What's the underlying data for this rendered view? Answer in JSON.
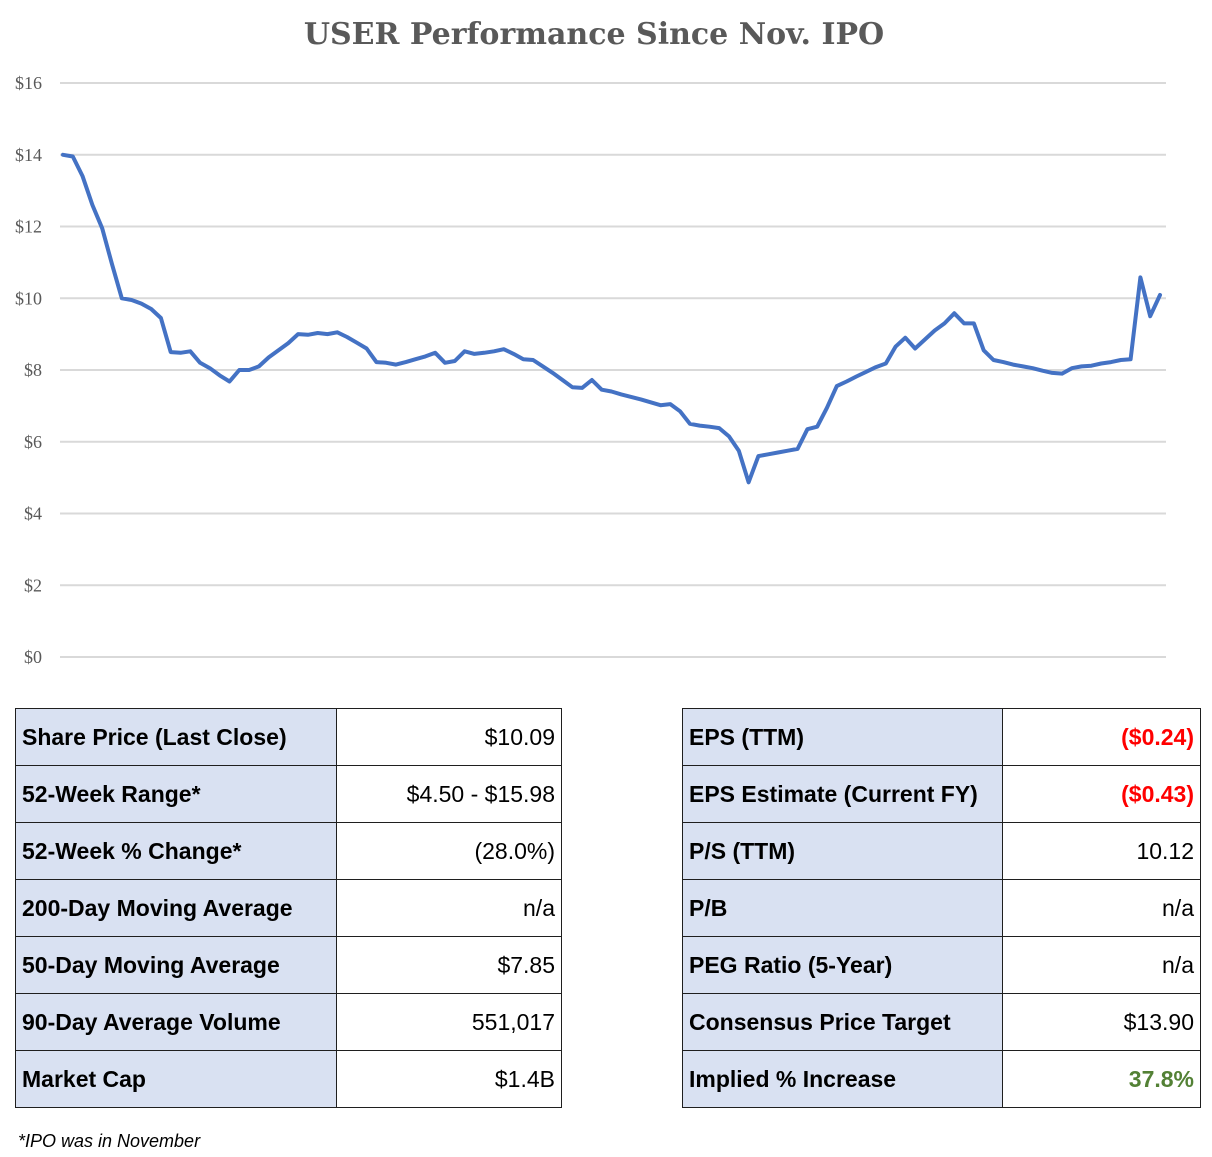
{
  "chart_data": {
    "type": "line",
    "title": "USER Performance Since Nov. IPO",
    "ylim": [
      0,
      16
    ],
    "yticks": [
      "$0",
      "$2",
      "$4",
      "$6",
      "$8",
      "$10",
      "$12",
      "$14",
      "$16"
    ],
    "grid": true,
    "series": [
      {
        "color": "#4472c4",
        "values": [
          14.0,
          13.95,
          13.4,
          12.6,
          11.95,
          10.95,
          10.0,
          9.95,
          9.85,
          9.7,
          9.45,
          8.5,
          8.48,
          8.52,
          8.2,
          8.05,
          7.85,
          7.68,
          8.0,
          8.0,
          8.1,
          8.35,
          8.55,
          8.75,
          9.0,
          8.98,
          9.03,
          9.0,
          9.05,
          8.92,
          8.76,
          8.6,
          8.22,
          8.2,
          8.15,
          8.22,
          8.3,
          8.38,
          8.48,
          8.2,
          8.25,
          8.52,
          8.45,
          8.48,
          8.52,
          8.58,
          8.45,
          8.3,
          8.28,
          8.1,
          7.92,
          7.72,
          7.52,
          7.5,
          7.72,
          7.45,
          7.4,
          7.32,
          7.25,
          7.18,
          7.1,
          7.02,
          7.05,
          6.85,
          6.5,
          6.45,
          6.42,
          6.38,
          6.15,
          5.75,
          4.87,
          5.6,
          5.65,
          5.7,
          5.75,
          5.8,
          6.35,
          6.42,
          6.95,
          7.55,
          7.68,
          7.82,
          7.95,
          8.08,
          8.18,
          8.65,
          8.9,
          8.6,
          8.85,
          9.1,
          9.3,
          9.58,
          9.3,
          9.3,
          8.55,
          8.28,
          8.22,
          8.15,
          8.1,
          8.05,
          7.98,
          7.92,
          7.9,
          8.05,
          8.1,
          8.12,
          8.18,
          8.22,
          8.28,
          8.3,
          10.58,
          9.5,
          10.09
        ]
      }
    ]
  },
  "left_table": [
    {
      "label": "Share Price (Last Close)",
      "value": "$10.09"
    },
    {
      "label": "52-Week Range*",
      "value": "$4.50 - $15.98"
    },
    {
      "label": "52-Week % Change*",
      "value": "(28.0%)"
    },
    {
      "label": "200-Day Moving Average",
      "value": "n/a"
    },
    {
      "label": "50-Day Moving Average",
      "value": "$7.85"
    },
    {
      "label": "90-Day Average Volume",
      "value": "551,017"
    },
    {
      "label": "Market Cap",
      "value": "$1.4B"
    }
  ],
  "right_table": [
    {
      "label": "EPS (TTM)",
      "value": "($0.24)"
    },
    {
      "label": "EPS Estimate (Current FY)",
      "value": "($0.43)"
    },
    {
      "label": "P/S (TTM)",
      "value": "10.12"
    },
    {
      "label": "P/B",
      "value": "n/a"
    },
    {
      "label": "PEG Ratio (5-Year)",
      "value": "n/a"
    },
    {
      "label": "Consensus Price Target",
      "value": "$13.90"
    },
    {
      "label": "Implied % Increase",
      "value": "37.8%"
    }
  ],
  "colors": {
    "negative": "#ff0000",
    "positive": "#538135",
    "label_bg": "#d9e1f2",
    "line": "#4472c4"
  },
  "footnote": "*IPO was in November"
}
